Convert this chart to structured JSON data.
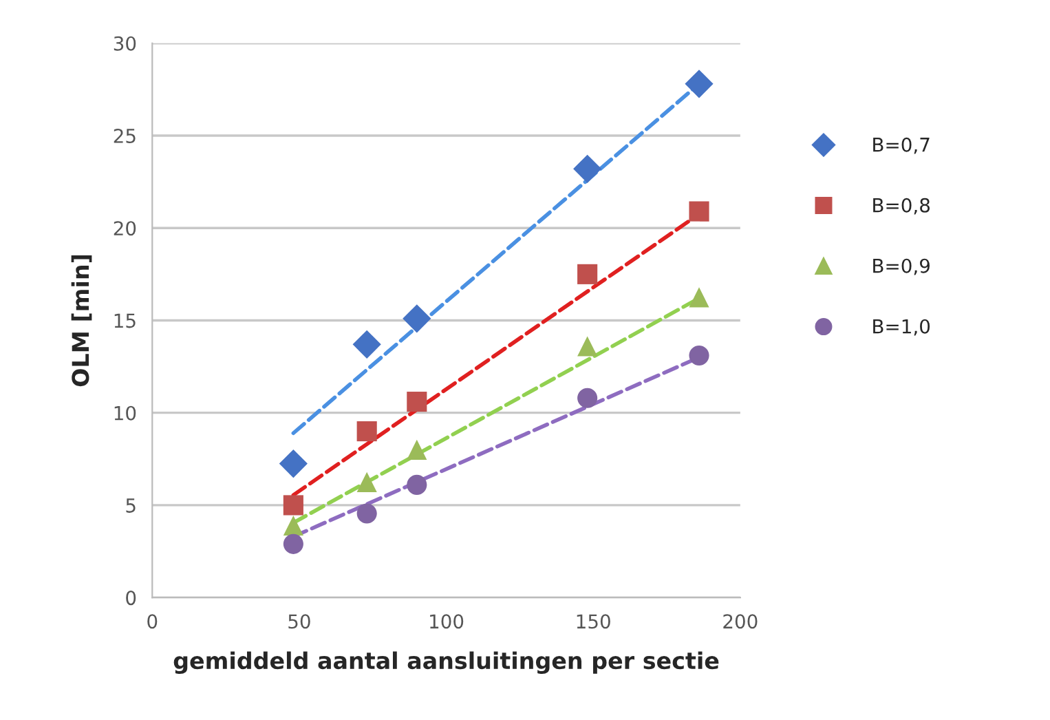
{
  "chart_data": {
    "type": "scatter",
    "xlabel": "gemiddeld aantal aansluitingen per sectie",
    "ylabel": "OLM [min]",
    "xlim": [
      0,
      200
    ],
    "xticks": [
      0,
      50,
      100,
      150,
      200
    ],
    "ylim": [
      0,
      30
    ],
    "yticks": [
      0,
      5,
      10,
      15,
      20,
      25,
      30
    ],
    "grid": "y",
    "legend": "right",
    "series": [
      {
        "name": "B=0,7",
        "color": "#4472c4",
        "marker": "diamond",
        "x": [
          48,
          73,
          90,
          148,
          186
        ],
        "values": [
          7.25,
          13.7,
          15.1,
          23.2,
          27.8
        ]
      },
      {
        "name": "B=0,8",
        "color": "#c0504d",
        "marker": "square",
        "x": [
          48,
          73,
          90,
          148,
          186
        ],
        "values": [
          5.0,
          9.0,
          10.6,
          17.5,
          20.9
        ]
      },
      {
        "name": "B=0,9",
        "color": "#9bbb59",
        "marker": "triangle",
        "x": [
          48,
          73,
          90,
          148,
          186
        ],
        "values": [
          3.9,
          6.25,
          8.0,
          13.6,
          16.25
        ]
      },
      {
        "name": "B=1,0",
        "color": "#8064a2",
        "marker": "circle",
        "x": [
          48,
          73,
          90,
          148,
          186
        ],
        "values": [
          2.9,
          4.55,
          6.1,
          10.8,
          13.1
        ]
      },
      {
        "type": "line",
        "line_style": "dashed",
        "color": "#4a90e2",
        "x": [
          48,
          186
        ],
        "values": [
          8.9,
          27.8
        ]
      },
      {
        "type": "line",
        "line_style": "dashed",
        "color": "#e02020",
        "x": [
          48,
          186
        ],
        "values": [
          5.55,
          20.75
        ]
      },
      {
        "type": "line",
        "line_style": "dashed",
        "color": "#92d050",
        "x": [
          48,
          186
        ],
        "values": [
          4.05,
          16.2
        ]
      },
      {
        "type": "line",
        "line_style": "dashed",
        "color": "#8e6cc0",
        "x": [
          48,
          186
        ],
        "values": [
          3.3,
          13.0
        ]
      }
    ]
  }
}
